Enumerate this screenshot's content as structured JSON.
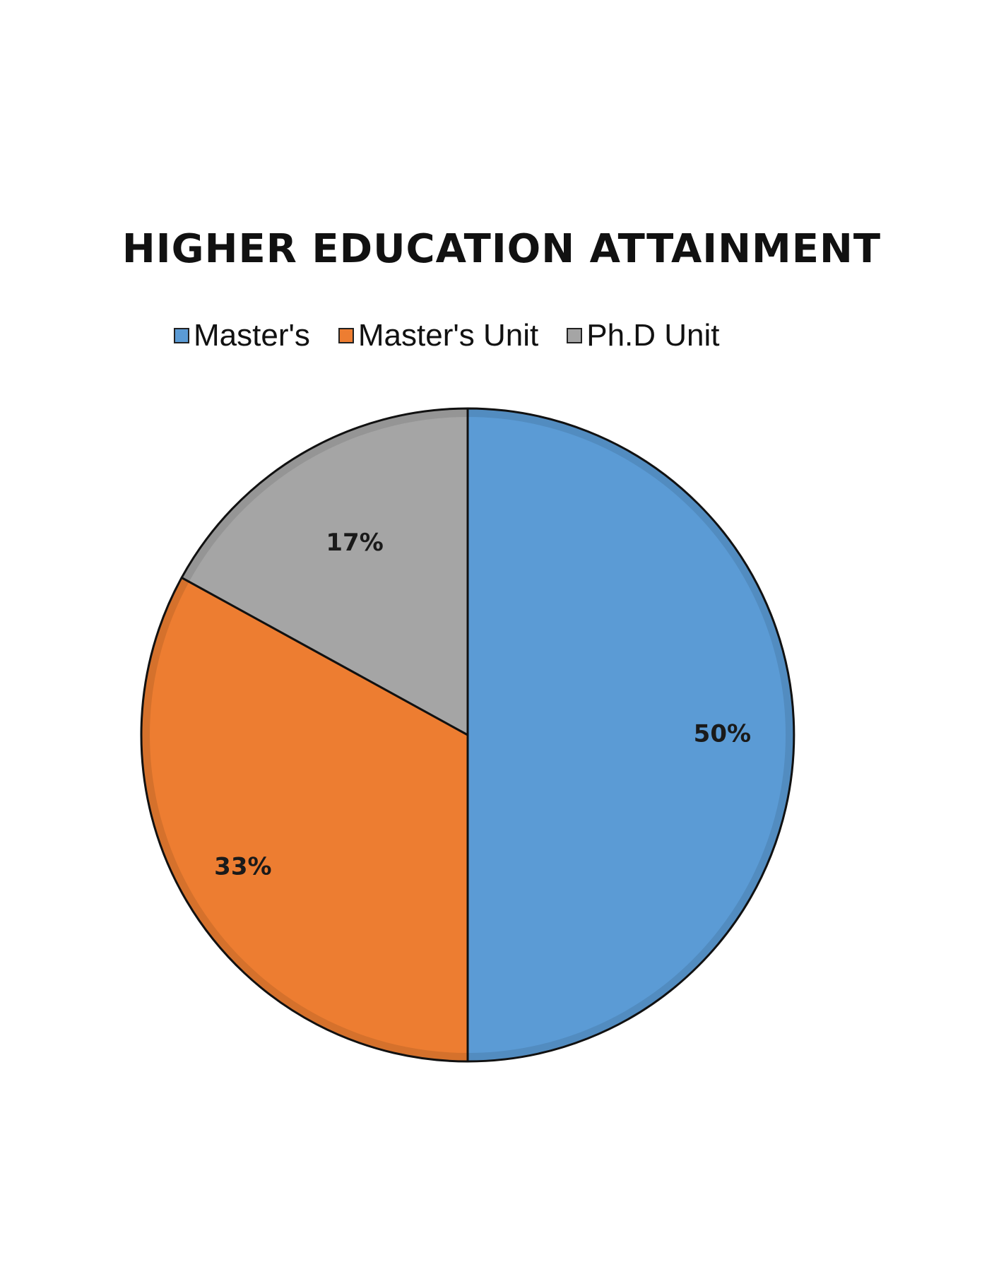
{
  "chart_data": {
    "type": "pie",
    "title": "HIGHER EDUCATION ATTAINMENT",
    "legend_position": "top",
    "slices": [
      {
        "name": "Master's",
        "value": 50,
        "label": "50%",
        "color": "#5B9BD5"
      },
      {
        "name": "Master's Unit",
        "value": 33,
        "label": "33%",
        "color": "#ED7D31"
      },
      {
        "name": "Ph.D Unit",
        "value": 17,
        "label": "17%",
        "color": "#A5A5A5"
      }
    ]
  }
}
